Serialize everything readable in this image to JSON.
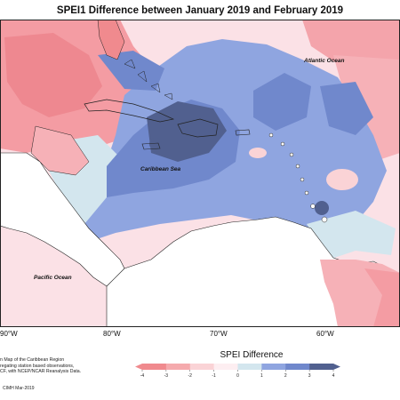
{
  "title": "SPEI1 Difference between January 2019 and February 2019",
  "map": {
    "labels": {
      "atlantic": "Atlantic Ocean",
      "caribbean": "Caribbean Sea",
      "pacific": "Pacific Ocean"
    },
    "longitudes": [
      "90°W",
      "80°W",
      "70°W",
      "60°W"
    ]
  },
  "note_lines": [
    "n Map of the Caribbean Region",
    "regating station based observations,",
    "CF, with NCEP/NCAR Reanalysis Data."
  ],
  "credit": "CIMH Mar-2019",
  "colorbar": {
    "title": "SPEI Difference",
    "ticks": [
      "-4",
      "-3",
      "-2",
      "-1",
      "0",
      "1",
      "2",
      "3",
      "4"
    ],
    "colors": [
      "#f08a8e",
      "#f5aaad",
      "#fad3d6",
      "#fdeef1",
      "#d3e6ee",
      "#8fa5e0",
      "#7088cc",
      "#51608f"
    ]
  }
}
